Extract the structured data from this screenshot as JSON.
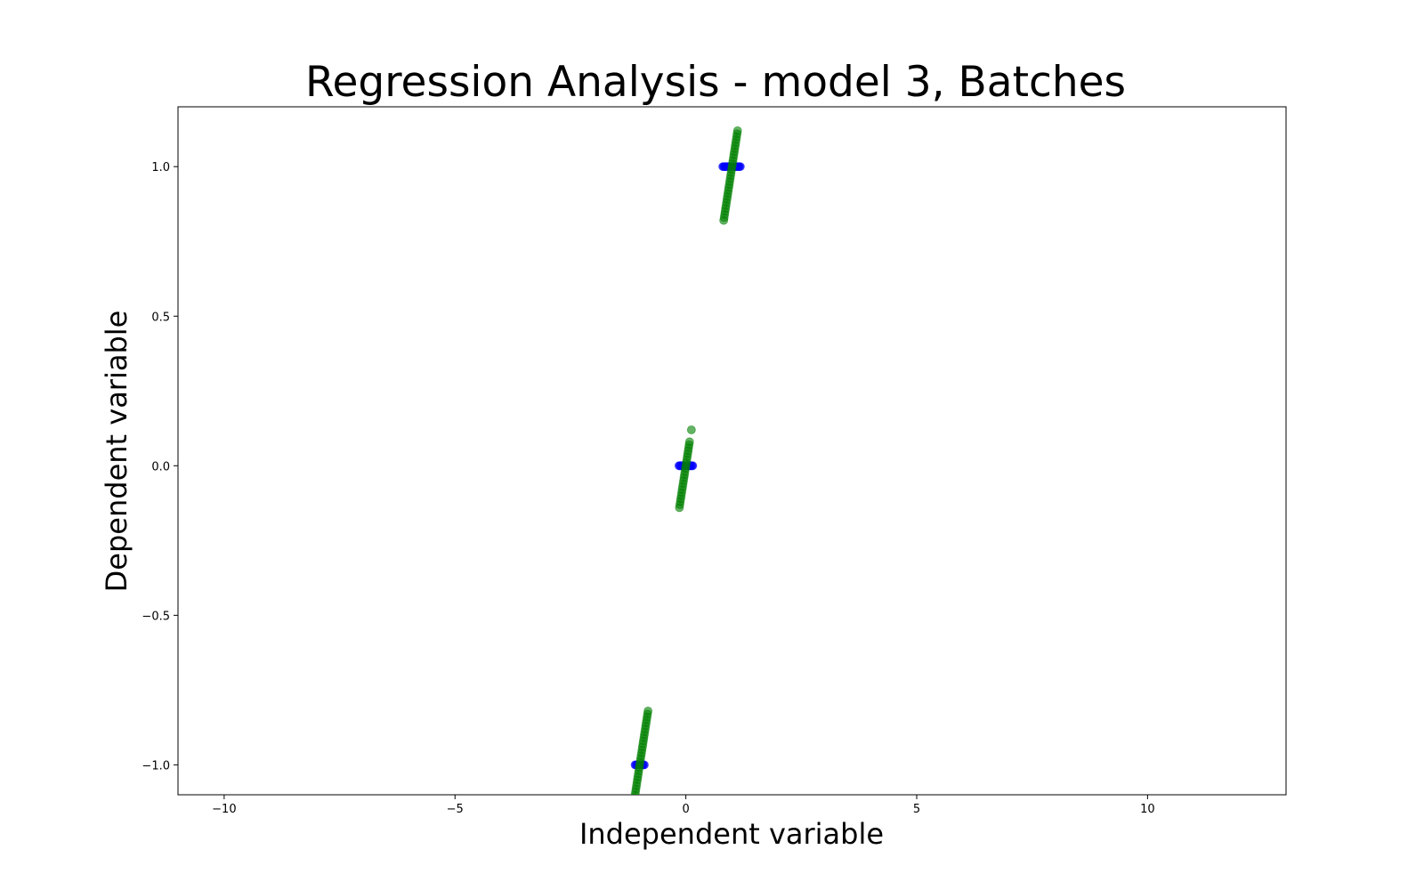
{
  "chart_data": {
    "type": "scatter",
    "title": "Regression Analysis - model 3, Batches",
    "xlabel": "Independent variable",
    "ylabel": "Dependent variable",
    "xlim": [
      -11,
      13
    ],
    "ylim": [
      -1.1,
      1.2
    ],
    "xticks": [
      -10,
      -5,
      0,
      5,
      10
    ],
    "xtick_labels": [
      "−10",
      "−5",
      "0",
      "5",
      "10"
    ],
    "yticks": [
      -1.0,
      -0.5,
      0.0,
      0.5,
      1.0
    ],
    "ytick_labels": [
      "−1.0",
      "−0.5",
      "0.0",
      "0.5",
      "1.0"
    ],
    "grid": false,
    "series": [
      {
        "color": "#0000ff",
        "marker": "circle",
        "x": [
          -1.1,
          -1.08,
          -1.06,
          -1.04,
          -1.02,
          -1.0,
          -0.98,
          -0.96,
          -0.94,
          -0.92,
          -0.9,
          -0.15,
          -0.13,
          -0.11,
          -0.09,
          -0.07,
          -0.05,
          -0.03,
          -0.01,
          0.01,
          0.03,
          0.05,
          0.07,
          0.09,
          0.11,
          0.13,
          0.15,
          0.8,
          0.82,
          0.84,
          0.86,
          0.88,
          0.9,
          0.92,
          0.94,
          0.96,
          0.98,
          1.0,
          1.02,
          1.04,
          1.06,
          1.08,
          1.1,
          1.12,
          1.14,
          1.16,
          1.18
        ],
        "y": [
          -1,
          -1,
          -1,
          -1,
          -1,
          -1,
          -1,
          -1,
          -1,
          -1,
          -1,
          0,
          0,
          0,
          0,
          0,
          0,
          0,
          0,
          0,
          0,
          0,
          0,
          0,
          0,
          0,
          0,
          1,
          1,
          1,
          1,
          1,
          1,
          1,
          1,
          1,
          1,
          1,
          1,
          1,
          1,
          1,
          1,
          1,
          1,
          1,
          1
        ]
      },
      {
        "color": "#008000",
        "marker": "circle",
        "x": [
          -1.12,
          -1.11,
          -1.1,
          -1.09,
          -1.08,
          -1.07,
          -1.06,
          -1.05,
          -1.04,
          -1.03,
          -1.02,
          -1.01,
          -1.0,
          -0.99,
          -0.98,
          -0.97,
          -0.96,
          -0.95,
          -0.94,
          -0.93,
          -0.92,
          -0.91,
          -0.9,
          -0.89,
          -0.88,
          -0.87,
          -0.86,
          -0.85,
          -0.84,
          -0.83,
          -0.82,
          -0.14,
          -0.13,
          -0.12,
          -0.11,
          -0.1,
          -0.09,
          -0.08,
          -0.07,
          -0.06,
          -0.05,
          -0.04,
          -0.03,
          -0.02,
          -0.01,
          0.0,
          0.01,
          0.02,
          0.03,
          0.04,
          0.05,
          0.06,
          0.07,
          0.08,
          0.12,
          0.82,
          0.83,
          0.84,
          0.85,
          0.86,
          0.87,
          0.88,
          0.89,
          0.9,
          0.91,
          0.92,
          0.93,
          0.94,
          0.95,
          0.96,
          0.97,
          0.98,
          0.99,
          1.0,
          1.01,
          1.02,
          1.03,
          1.04,
          1.05,
          1.06,
          1.07,
          1.08,
          1.09,
          1.1,
          1.11,
          1.12
        ],
        "y": [
          -1.12,
          -1.11,
          -1.1,
          -1.09,
          -1.08,
          -1.07,
          -1.06,
          -1.05,
          -1.04,
          -1.03,
          -1.02,
          -1.01,
          -1.0,
          -0.99,
          -0.98,
          -0.97,
          -0.96,
          -0.95,
          -0.94,
          -0.93,
          -0.92,
          -0.91,
          -0.9,
          -0.89,
          -0.88,
          -0.87,
          -0.86,
          -0.85,
          -0.84,
          -0.83,
          -0.82,
          -0.14,
          -0.13,
          -0.12,
          -0.11,
          -0.1,
          -0.09,
          -0.08,
          -0.07,
          -0.06,
          -0.05,
          -0.04,
          -0.03,
          -0.02,
          -0.01,
          0.0,
          0.01,
          0.02,
          0.03,
          0.04,
          0.05,
          0.06,
          0.07,
          0.08,
          0.12,
          0.82,
          0.83,
          0.84,
          0.85,
          0.86,
          0.87,
          0.88,
          0.89,
          0.9,
          0.91,
          0.92,
          0.93,
          0.94,
          0.95,
          0.96,
          0.97,
          0.98,
          0.99,
          1.0,
          1.01,
          1.02,
          1.03,
          1.04,
          1.05,
          1.06,
          1.07,
          1.08,
          1.09,
          1.1,
          1.11,
          1.12
        ]
      }
    ]
  }
}
